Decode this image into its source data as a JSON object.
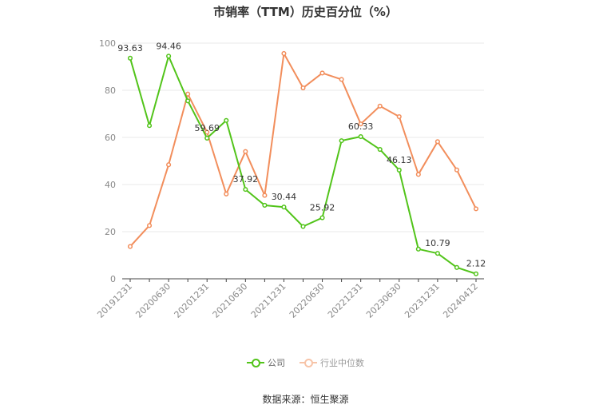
{
  "chart_data": {
    "type": "line",
    "title": "市销率（TTM）历史百分位（%）",
    "x": [
      "20191231",
      "",
      "20200630",
      "",
      "20201231",
      "",
      "20210630",
      "",
      "20211231",
      "",
      "20220630",
      "",
      "20221231",
      "",
      "20230630",
      "",
      "20231231",
      "",
      "20240412"
    ],
    "xtick_labels": [
      "20191231",
      "20200630",
      "20201231",
      "20210630",
      "20211231",
      "20220630",
      "20221231",
      "20230630",
      "20231231",
      "20240412"
    ],
    "ylim": [
      0,
      100
    ],
    "yticks": [
      0,
      20,
      40,
      60,
      80,
      100
    ],
    "grid": true,
    "legend_position": "bottom",
    "series": [
      {
        "name": "公司",
        "color": "#52c41a",
        "values": [
          93.63,
          65,
          94.46,
          75.5,
          59.69,
          67.2,
          37.92,
          31.2,
          30.44,
          22.2,
          25.92,
          58.6,
          60.33,
          54.9,
          46.13,
          12.6,
          10.79,
          4.8,
          2.12
        ],
        "labels": [
          "93.63",
          "",
          "94.46",
          "",
          "59.69",
          "",
          "37.92",
          "",
          "30.44",
          "",
          "25.92",
          "",
          "60.33",
          "",
          "46.13",
          "",
          "10.79",
          "",
          "2.12"
        ]
      },
      {
        "name": "行业中位数",
        "color": "#f28e5c",
        "values": [
          13.7,
          22.6,
          48.4,
          78.4,
          62.2,
          36.0,
          54.0,
          35.4,
          95.6,
          81.0,
          87.3,
          84.6,
          65.7,
          73.3,
          68.8,
          44.3,
          58.2,
          46.2,
          29.7
        ],
        "labels": []
      }
    ]
  },
  "source_text": "数据来源：恒生聚源"
}
